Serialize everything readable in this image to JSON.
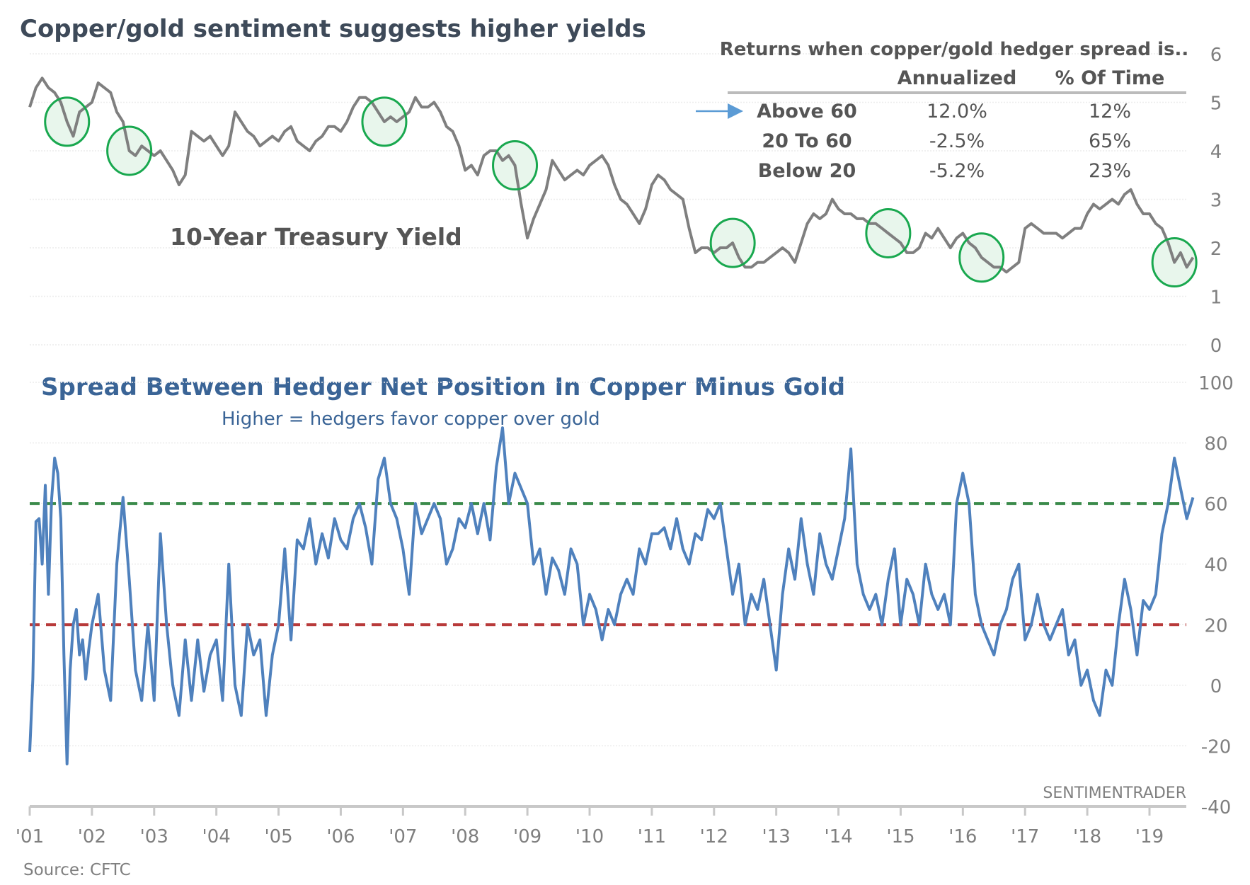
{
  "chart_data": [
    {
      "type": "line",
      "title": "Copper/gold sentiment suggests higher yields",
      "series_label": "10-Year Treasury Yield",
      "ylabel": "",
      "ylim": [
        0,
        6
      ],
      "yticks": [
        "0",
        "1",
        "2",
        "3",
        "4",
        "5",
        "6"
      ],
      "grid": true,
      "colors": {
        "line": "#7f7f7f",
        "circle_stroke": "#19a84f",
        "circle_fill": "#e8f6ec"
      },
      "x": [
        2001.0,
        2001.1,
        2001.2,
        2001.3,
        2001.4,
        2001.5,
        2001.6,
        2001.7,
        2001.8,
        2001.9,
        2002.0,
        2002.1,
        2002.2,
        2002.3,
        2002.4,
        2002.5,
        2002.6,
        2002.7,
        2002.8,
        2002.9,
        2003.0,
        2003.1,
        2003.2,
        2003.3,
        2003.4,
        2003.5,
        2003.6,
        2003.7,
        2003.8,
        2003.9,
        2004.0,
        2004.1,
        2004.2,
        2004.3,
        2004.4,
        2004.5,
        2004.6,
        2004.7,
        2004.8,
        2004.9,
        2005.0,
        2005.1,
        2005.2,
        2005.3,
        2005.4,
        2005.5,
        2005.6,
        2005.7,
        2005.8,
        2005.9,
        2006.0,
        2006.1,
        2006.2,
        2006.3,
        2006.4,
        2006.5,
        2006.6,
        2006.7,
        2006.8,
        2006.9,
        2007.0,
        2007.1,
        2007.2,
        2007.3,
        2007.4,
        2007.5,
        2007.6,
        2007.7,
        2007.8,
        2007.9,
        2008.0,
        2008.1,
        2008.2,
        2008.3,
        2008.4,
        2008.5,
        2008.6,
        2008.7,
        2008.8,
        2008.9,
        2009.0,
        2009.1,
        2009.2,
        2009.3,
        2009.4,
        2009.5,
        2009.6,
        2009.7,
        2009.8,
        2009.9,
        2010.0,
        2010.1,
        2010.2,
        2010.3,
        2010.4,
        2010.5,
        2010.6,
        2010.7,
        2010.8,
        2010.9,
        2011.0,
        2011.1,
        2011.2,
        2011.3,
        2011.4,
        2011.5,
        2011.6,
        2011.7,
        2011.8,
        2011.9,
        2012.0,
        2012.1,
        2012.2,
        2012.3,
        2012.4,
        2012.5,
        2012.6,
        2012.7,
        2012.8,
        2012.9,
        2013.0,
        2013.1,
        2013.2,
        2013.3,
        2013.4,
        2013.5,
        2013.6,
        2013.7,
        2013.8,
        2013.9,
        2014.0,
        2014.1,
        2014.2,
        2014.3,
        2014.4,
        2014.5,
        2014.6,
        2014.7,
        2014.8,
        2014.9,
        2015.0,
        2015.1,
        2015.2,
        2015.3,
        2015.4,
        2015.5,
        2015.6,
        2015.7,
        2015.8,
        2015.9,
        2016.0,
        2016.1,
        2016.2,
        2016.3,
        2016.4,
        2016.5,
        2016.6,
        2016.7,
        2016.8,
        2016.9,
        2017.0,
        2017.1,
        2017.2,
        2017.3,
        2017.4,
        2017.5,
        2017.6,
        2017.7,
        2017.8,
        2017.9,
        2018.0,
        2018.1,
        2018.2,
        2018.3,
        2018.4,
        2018.5,
        2018.6,
        2018.7,
        2018.8,
        2018.9,
        2019.0,
        2019.1,
        2019.2,
        2019.3,
        2019.4,
        2019.5,
        2019.6,
        2019.7
      ],
      "values": [
        4.9,
        5.3,
        5.5,
        5.3,
        5.2,
        5.0,
        4.6,
        4.3,
        4.8,
        4.9,
        5.0,
        5.4,
        5.3,
        5.2,
        4.8,
        4.6,
        4.0,
        3.9,
        4.1,
        4.0,
        3.9,
        4.0,
        3.8,
        3.6,
        3.3,
        3.5,
        4.4,
        4.3,
        4.2,
        4.3,
        4.1,
        3.9,
        4.1,
        4.8,
        4.6,
        4.4,
        4.3,
        4.1,
        4.2,
        4.3,
        4.2,
        4.4,
        4.5,
        4.2,
        4.1,
        4.0,
        4.2,
        4.3,
        4.5,
        4.5,
        4.4,
        4.6,
        4.9,
        5.1,
        5.1,
        5.0,
        4.8,
        4.6,
        4.7,
        4.6,
        4.7,
        4.8,
        5.1,
        4.9,
        4.9,
        5.0,
        4.8,
        4.5,
        4.4,
        4.1,
        3.6,
        3.7,
        3.5,
        3.9,
        4.0,
        4.0,
        3.8,
        3.9,
        3.7,
        2.9,
        2.2,
        2.6,
        2.9,
        3.2,
        3.8,
        3.6,
        3.4,
        3.5,
        3.6,
        3.5,
        3.7,
        3.8,
        3.9,
        3.7,
        3.3,
        3.0,
        2.9,
        2.7,
        2.5,
        2.8,
        3.3,
        3.5,
        3.4,
        3.2,
        3.1,
        3.0,
        2.4,
        1.9,
        2.0,
        2.0,
        1.9,
        2.0,
        2.0,
        2.1,
        1.8,
        1.6,
        1.6,
        1.7,
        1.7,
        1.8,
        1.9,
        2.0,
        1.9,
        1.7,
        2.1,
        2.5,
        2.7,
        2.6,
        2.7,
        3.0,
        2.8,
        2.7,
        2.7,
        2.6,
        2.6,
        2.5,
        2.5,
        2.4,
        2.3,
        2.2,
        2.1,
        1.9,
        1.9,
        2.0,
        2.3,
        2.2,
        2.4,
        2.2,
        2.0,
        2.2,
        2.3,
        2.1,
        2.0,
        1.8,
        1.7,
        1.6,
        1.6,
        1.5,
        1.6,
        1.7,
        2.4,
        2.5,
        2.4,
        2.3,
        2.3,
        2.3,
        2.2,
        2.3,
        2.4,
        2.4,
        2.7,
        2.9,
        2.8,
        2.9,
        3.0,
        2.9,
        3.1,
        3.2,
        2.9,
        2.7,
        2.7,
        2.5,
        2.4,
        2.1,
        1.7,
        1.9,
        1.6,
        1.8
      ],
      "highlight_circles_at_years": [
        2001.6,
        2002.6,
        2006.7,
        2008.8,
        2012.3,
        2014.8,
        2016.3,
        2019.4
      ],
      "table": {
        "title": "Returns when copper/gold hedger spread is..",
        "columns": [
          "",
          "Annualized",
          "% Of Time"
        ],
        "rows": [
          {
            "label": "Above 60",
            "annualized": "12.0%",
            "pct_time": "12%",
            "arrow": true
          },
          {
            "label": "20 To 60",
            "annualized": "-2.5%",
            "pct_time": "65%",
            "arrow": false
          },
          {
            "label": "Below 20",
            "annualized": "-5.2%",
            "pct_time": "23%",
            "arrow": false
          }
        ]
      }
    },
    {
      "type": "line",
      "title": "Spread Between Hedger Net Position In Copper Minus Gold",
      "subtitle": "Higher = hedgers favor copper over gold",
      "ylabel": "",
      "ylim": [
        -40,
        100
      ],
      "yticks": [
        "-40",
        "-20",
        "0",
        "20",
        "40",
        "60",
        "80",
        "100"
      ],
      "grid": true,
      "reference_lines": [
        {
          "value": 60,
          "color": "#3a8a4a",
          "style": "dashed"
        },
        {
          "value": 20,
          "color": "#b83a3a",
          "style": "dashed"
        }
      ],
      "colors": {
        "line": "#4f81bd"
      },
      "x": [
        2001.0,
        2001.05,
        2001.1,
        2001.15,
        2001.2,
        2001.25,
        2001.3,
        2001.35,
        2001.4,
        2001.45,
        2001.5,
        2001.55,
        2001.6,
        2001.65,
        2001.7,
        2001.75,
        2001.8,
        2001.85,
        2001.9,
        2001.95,
        2002.0,
        2002.1,
        2002.2,
        2002.3,
        2002.4,
        2002.5,
        2002.6,
        2002.7,
        2002.8,
        2002.9,
        2003.0,
        2003.1,
        2003.2,
        2003.3,
        2003.4,
        2003.5,
        2003.6,
        2003.7,
        2003.8,
        2003.9,
        2004.0,
        2004.1,
        2004.2,
        2004.3,
        2004.4,
        2004.5,
        2004.6,
        2004.7,
        2004.8,
        2004.9,
        2005.0,
        2005.1,
        2005.2,
        2005.3,
        2005.4,
        2005.5,
        2005.6,
        2005.7,
        2005.8,
        2005.9,
        2006.0,
        2006.1,
        2006.2,
        2006.3,
        2006.4,
        2006.5,
        2006.6,
        2006.7,
        2006.8,
        2006.9,
        2007.0,
        2007.1,
        2007.2,
        2007.3,
        2007.4,
        2007.5,
        2007.6,
        2007.7,
        2007.8,
        2007.9,
        2008.0,
        2008.1,
        2008.2,
        2008.3,
        2008.4,
        2008.5,
        2008.6,
        2008.7,
        2008.8,
        2008.9,
        2009.0,
        2009.1,
        2009.2,
        2009.3,
        2009.4,
        2009.5,
        2009.6,
        2009.7,
        2009.8,
        2009.9,
        2010.0,
        2010.1,
        2010.2,
        2010.3,
        2010.4,
        2010.5,
        2010.6,
        2010.7,
        2010.8,
        2010.9,
        2011.0,
        2011.1,
        2011.2,
        2011.3,
        2011.4,
        2011.5,
        2011.6,
        2011.7,
        2011.8,
        2011.9,
        2012.0,
        2012.1,
        2012.2,
        2012.3,
        2012.4,
        2012.5,
        2012.6,
        2012.7,
        2012.8,
        2012.9,
        2013.0,
        2013.1,
        2013.2,
        2013.3,
        2013.4,
        2013.5,
        2013.6,
        2013.7,
        2013.8,
        2013.9,
        2014.0,
        2014.1,
        2014.2,
        2014.3,
        2014.4,
        2014.5,
        2014.6,
        2014.7,
        2014.8,
        2014.9,
        2015.0,
        2015.1,
        2015.2,
        2015.3,
        2015.4,
        2015.5,
        2015.6,
        2015.7,
        2015.8,
        2015.9,
        2016.0,
        2016.1,
        2016.2,
        2016.3,
        2016.4,
        2016.5,
        2016.6,
        2016.7,
        2016.8,
        2016.9,
        2017.0,
        2017.1,
        2017.2,
        2017.3,
        2017.4,
        2017.5,
        2017.6,
        2017.7,
        2017.8,
        2017.9,
        2018.0,
        2018.1,
        2018.2,
        2018.3,
        2018.4,
        2018.5,
        2018.6,
        2018.7,
        2018.8,
        2018.9,
        2019.0,
        2019.1,
        2019.2,
        2019.3,
        2019.4,
        2019.5,
        2019.6,
        2019.7
      ],
      "values": [
        -22,
        2,
        54,
        55,
        40,
        66,
        30,
        61,
        75,
        70,
        55,
        10,
        -26,
        5,
        20,
        25,
        10,
        15,
        2,
        12,
        20,
        30,
        5,
        -5,
        40,
        62,
        35,
        5,
        -5,
        20,
        -5,
        50,
        20,
        0,
        -10,
        15,
        -5,
        15,
        -2,
        10,
        15,
        -5,
        40,
        0,
        -10,
        20,
        10,
        15,
        -10,
        10,
        20,
        45,
        15,
        48,
        45,
        55,
        40,
        50,
        42,
        55,
        48,
        45,
        55,
        60,
        52,
        40,
        68,
        75,
        60,
        55,
        45,
        30,
        60,
        50,
        55,
        60,
        55,
        40,
        45,
        55,
        52,
        60,
        50,
        60,
        48,
        72,
        85,
        60,
        70,
        65,
        60,
        40,
        45,
        30,
        42,
        38,
        30,
        45,
        40,
        20,
        30,
        25,
        15,
        25,
        20,
        30,
        35,
        30,
        45,
        40,
        50,
        50,
        52,
        45,
        55,
        45,
        40,
        50,
        48,
        58,
        55,
        60,
        45,
        30,
        40,
        20,
        30,
        25,
        35,
        20,
        5,
        30,
        45,
        35,
        55,
        40,
        30,
        50,
        40,
        35,
        45,
        55,
        78,
        40,
        30,
        25,
        30,
        20,
        35,
        45,
        20,
        35,
        30,
        20,
        40,
        30,
        25,
        30,
        20,
        60,
        70,
        60,
        30,
        20,
        15,
        10,
        20,
        25,
        35,
        40,
        15,
        20,
        30,
        20,
        15,
        20,
        25,
        10,
        15,
        0,
        5,
        -5,
        -10,
        5,
        0,
        20,
        35,
        25,
        10,
        28,
        25,
        30,
        50,
        60,
        75,
        65,
        55,
        62
      ]
    }
  ],
  "x_axis": {
    "tick_labels": [
      "'01",
      "'02",
      "'03",
      "'04",
      "'05",
      "'06",
      "'07",
      "'08",
      "'09",
      "'10",
      "'11",
      "'12",
      "'13",
      "'14",
      "'15",
      "'16",
      "'17",
      "'18",
      "'19"
    ]
  },
  "watermark": "SENTIMENTRADER",
  "source": "Source: CFTC"
}
